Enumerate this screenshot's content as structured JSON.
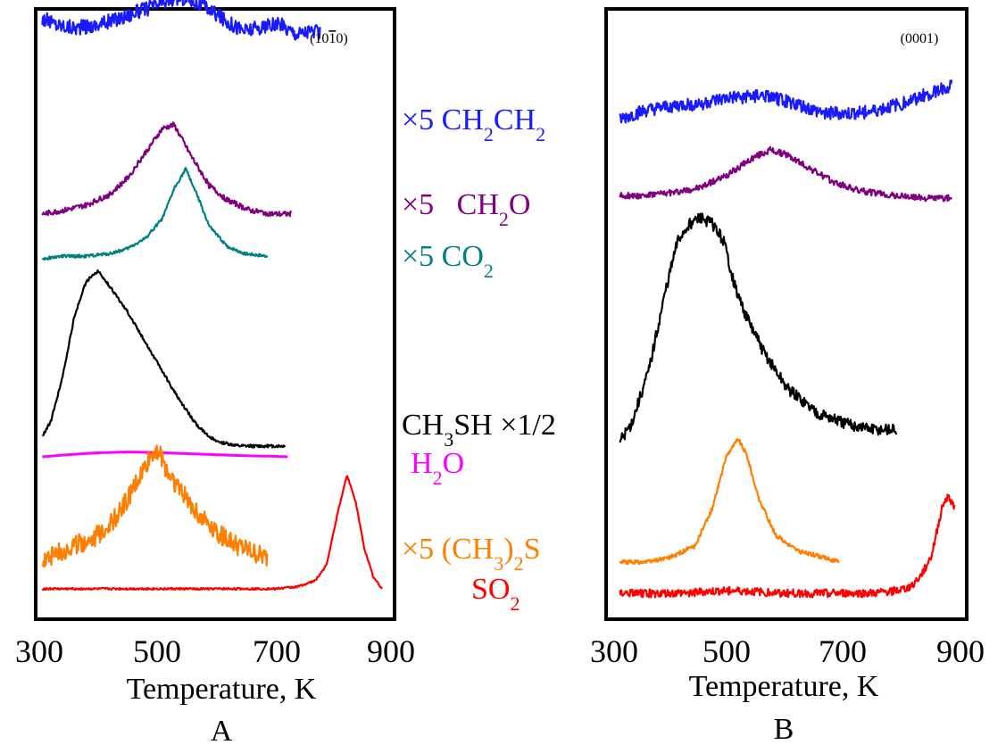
{
  "chart_data": [
    {
      "type": "line",
      "panel_label": "A",
      "facet": "(10̅1̅0)",
      "facet_display": "(10",
      "facet_bar_digit": "1",
      "facet_end": "0)",
      "xlabel": "Temperature, K",
      "xlim": [
        300,
        900
      ],
      "xticks": [
        "300",
        "500",
        "700",
        "900"
      ],
      "series": [
        {
          "key": "CH2CH2",
          "label_parts": [
            "×5 CH",
            "2",
            "CH",
            "2"
          ],
          "color": "#1a1aff",
          "x": [
            305,
            330,
            360,
            390,
            420,
            450,
            480,
            510,
            540,
            560,
            590,
            620,
            650,
            680,
            710,
            740,
            760,
            780
          ],
          "y": [
            0.82,
            0.78,
            0.76,
            0.77,
            0.8,
            0.84,
            0.88,
            0.92,
            0.96,
            0.94,
            0.88,
            0.8,
            0.74,
            0.76,
            0.78,
            0.72,
            0.74,
            0.72
          ],
          "noise": 0.05
        },
        {
          "key": "CH2O",
          "label_parts": [
            "×5   CH",
            "2",
            "O"
          ],
          "color": "#800080",
          "x": [
            305,
            340,
            380,
            420,
            450,
            480,
            510,
            530,
            560,
            590,
            620,
            660,
            700,
            730
          ],
          "y": [
            0.14,
            0.16,
            0.19,
            0.25,
            0.34,
            0.48,
            0.62,
            0.64,
            0.46,
            0.3,
            0.22,
            0.16,
            0.14,
            0.14
          ],
          "noise": 0.015
        },
        {
          "key": "CO2",
          "label_parts": [
            "×5 CO",
            "2"
          ],
          "color": "#008080",
          "x": [
            305,
            340,
            380,
            420,
            450,
            480,
            510,
            530,
            550,
            570,
            590,
            620,
            650,
            690
          ],
          "y": [
            0.0,
            0.02,
            0.02,
            0.04,
            0.08,
            0.16,
            0.32,
            0.56,
            0.72,
            0.5,
            0.26,
            0.1,
            0.04,
            0.02
          ],
          "noise": 0.012
        },
        {
          "key": "CH3SH",
          "label_parts": [
            "CH",
            "3",
            "SH ×1/2"
          ],
          "color": "#000000",
          "x": [
            305,
            320,
            340,
            360,
            380,
            400,
            420,
            450,
            480,
            510,
            540,
            570,
            600,
            640,
            680,
            720
          ],
          "y": [
            0.04,
            0.1,
            0.28,
            0.52,
            0.66,
            0.7,
            0.64,
            0.54,
            0.42,
            0.3,
            0.18,
            0.08,
            0.02,
            0.0,
            0.0,
            0.0
          ],
          "noise": 0.006
        },
        {
          "key": "H2O",
          "label_parts": [
            "H",
            "2",
            "O"
          ],
          "color": "#ff00ff",
          "x": [
            305,
            350,
            400,
            450,
            500,
            550,
            600,
            650,
            700,
            725
          ],
          "y": [
            0.0,
            0.008,
            0.015,
            0.018,
            0.016,
            0.012,
            0.008,
            0.004,
            0.002,
            0.0
          ],
          "noise": 0.0
        },
        {
          "key": "(CH3)2S",
          "label_parts": [
            "×5 (CH",
            "3",
            ")",
            "2",
            "S"
          ],
          "color": "#ff7f00",
          "x": [
            305,
            340,
            370,
            400,
            430,
            460,
            490,
            500,
            520,
            550,
            580,
            610,
            640,
            690
          ],
          "y": [
            0.1,
            0.14,
            0.18,
            0.22,
            0.3,
            0.44,
            0.6,
            0.64,
            0.52,
            0.4,
            0.3,
            0.22,
            0.16,
            0.1
          ],
          "noise": 0.05
        },
        {
          "key": "SO2",
          "label_parts": [
            "SO",
            "2"
          ],
          "color": "#ff0000",
          "x": [
            305,
            400,
            500,
            600,
            700,
            740,
            770,
            790,
            810,
            825,
            840,
            855,
            870,
            885
          ],
          "y": [
            0.0,
            0.0,
            0.0,
            0.0,
            0.0,
            0.01,
            0.04,
            0.12,
            0.4,
            0.58,
            0.44,
            0.2,
            0.06,
            0.0
          ],
          "noise": 0.005
        }
      ]
    },
    {
      "type": "line",
      "panel_label": "B",
      "facet": "(0001)",
      "xlabel": "Temperature, K",
      "xlim": [
        300,
        900
      ],
      "xticks": [
        "300",
        "500",
        "700",
        "900"
      ],
      "series": [
        {
          "key": "CH2CH2",
          "color": "#1a1aff",
          "x": [
            310,
            350,
            400,
            450,
            500,
            550,
            600,
            650,
            700,
            750,
            800,
            850,
            885
          ],
          "y": [
            0.02,
            0.05,
            0.07,
            0.08,
            0.1,
            0.11,
            0.09,
            0.05,
            0.04,
            0.05,
            0.08,
            0.12,
            0.15
          ],
          "noise": 0.025
        },
        {
          "key": "CH2O",
          "color": "#800080",
          "x": [
            310,
            350,
            400,
            450,
            500,
            540,
            570,
            600,
            640,
            680,
            720,
            780,
            840,
            885
          ],
          "y": [
            0.02,
            0.02,
            0.03,
            0.05,
            0.1,
            0.16,
            0.19,
            0.17,
            0.12,
            0.07,
            0.04,
            0.02,
            0.01,
            0.01
          ],
          "noise": 0.012
        },
        {
          "key": "CH3SH",
          "color": "#000000",
          "x": [
            310,
            330,
            360,
            390,
            410,
            430,
            450,
            470,
            490,
            510,
            530,
            560,
            600,
            650,
            700,
            750,
            790
          ],
          "y": [
            0.0,
            0.06,
            0.24,
            0.52,
            0.68,
            0.74,
            0.76,
            0.74,
            0.68,
            0.52,
            0.42,
            0.3,
            0.18,
            0.1,
            0.06,
            0.04,
            0.04
          ],
          "noise": 0.02
        },
        {
          "key": "(CH3)2S",
          "color": "#ff7f00",
          "x": [
            310,
            360,
            400,
            440,
            470,
            495,
            515,
            530,
            550,
            580,
            620,
            660,
            690
          ],
          "y": [
            0.0,
            0.0,
            0.02,
            0.06,
            0.2,
            0.4,
            0.46,
            0.4,
            0.24,
            0.1,
            0.04,
            0.02,
            0.0
          ],
          "noise": 0.008
        },
        {
          "key": "SO2",
          "color": "#ff0000",
          "x": [
            310,
            400,
            500,
            600,
            700,
            750,
            790,
            810,
            830,
            850,
            870,
            880,
            890
          ],
          "y": [
            0.0,
            0.0,
            0.01,
            0.0,
            0.0,
            0.0,
            0.01,
            0.02,
            0.06,
            0.14,
            0.34,
            0.36,
            0.32
          ],
          "noise": 0.015
        }
      ]
    }
  ]
}
